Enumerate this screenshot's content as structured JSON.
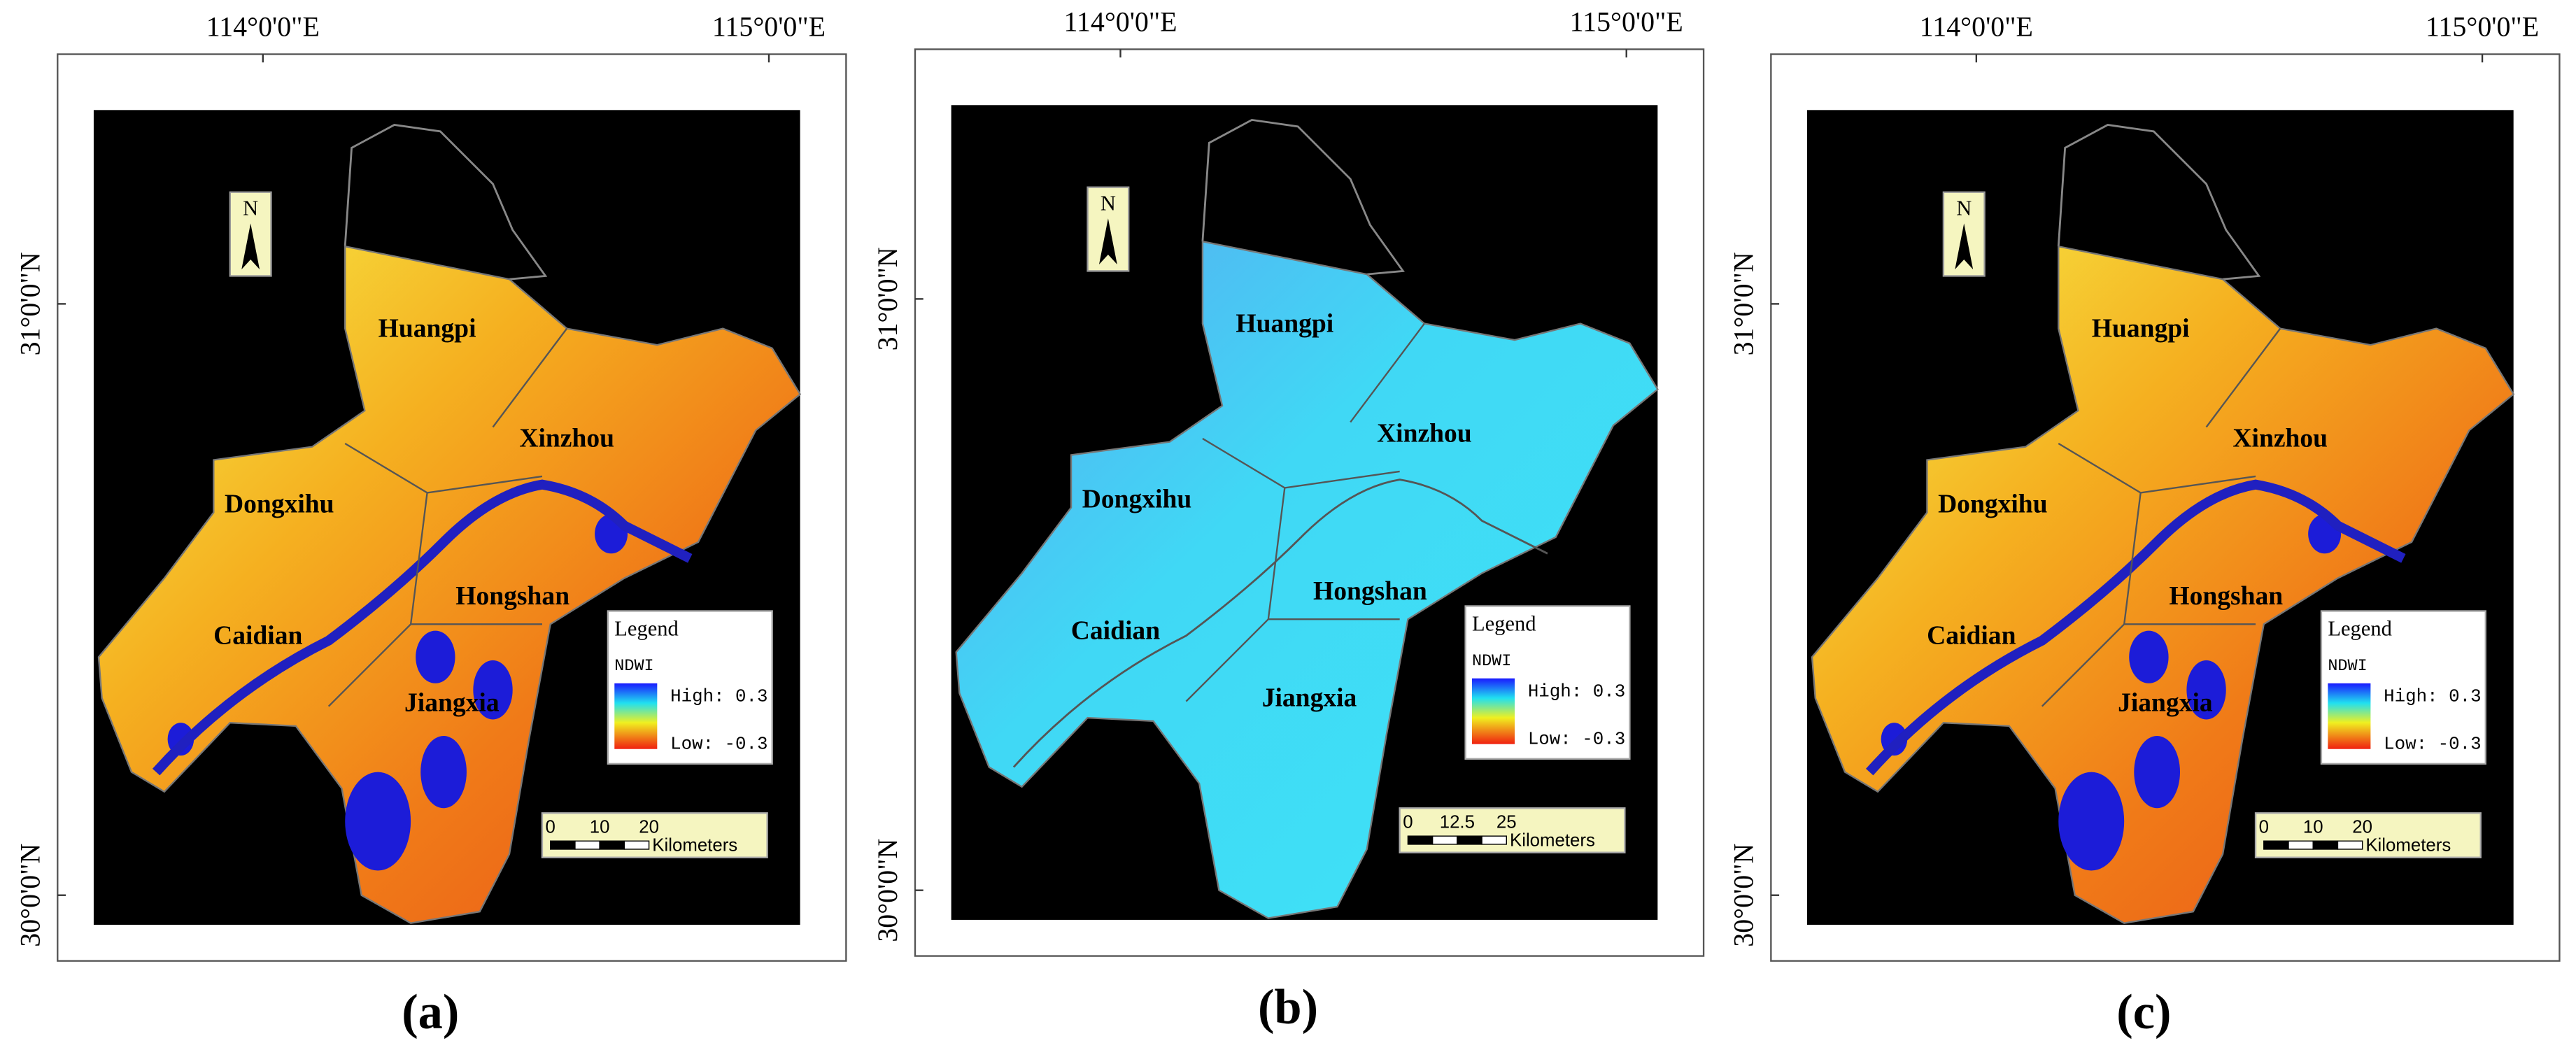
{
  "panels": [
    {
      "caption": "(a)",
      "lon_labels": [
        "114°0'0\"E",
        "115°0'0\"E"
      ],
      "lat_labels": [
        "31°0'0\"N",
        "30°0'0\"N"
      ],
      "regions": [
        "Huangpi",
        "Xinzhou",
        "Dongxihu",
        "Hongshan",
        "Caidian",
        "Jiangxia"
      ],
      "legend": {
        "title": "Legend",
        "variable": "NDWI",
        "high": "High: 0.3",
        "low": "Low: -0.3"
      },
      "scale": {
        "ticks": [
          "0",
          "10",
          "20"
        ],
        "unit": "Kilometers"
      },
      "north": "N"
    },
    {
      "caption": "(b)",
      "lon_labels": [
        "114°0'0\"E",
        "115°0'0\"E"
      ],
      "lat_labels": [
        "31°0'0\"N",
        "30°0'0\"N"
      ],
      "regions": [
        "Huangpi",
        "Xinzhou",
        "Dongxihu",
        "Hongshan",
        "Caidian",
        "Jiangxia"
      ],
      "legend": {
        "title": "Legend",
        "variable": "NDWI",
        "high": "High: 0.3",
        "low": "Low: -0.3"
      },
      "scale": {
        "ticks": [
          "0",
          "12.5",
          "25"
        ],
        "unit": "Kilometers"
      },
      "north": "N"
    },
    {
      "caption": "(c)",
      "lon_labels": [
        "114°0'0\"E",
        "115°0'0\"E"
      ],
      "lat_labels": [
        "31°0'0\"N",
        "30°0'0\"N"
      ],
      "regions": [
        "Huangpi",
        "Xinzhou",
        "Dongxihu",
        "Hongshan",
        "Caidian",
        "Jiangxia"
      ],
      "legend": {
        "title": "Legend",
        "variable": "NDWI",
        "high": "High: 0.3",
        "low": "Low: -0.3"
      },
      "scale": {
        "ticks": [
          "0",
          "10",
          "20"
        ],
        "unit": "Kilometers"
      },
      "north": "N"
    }
  ]
}
